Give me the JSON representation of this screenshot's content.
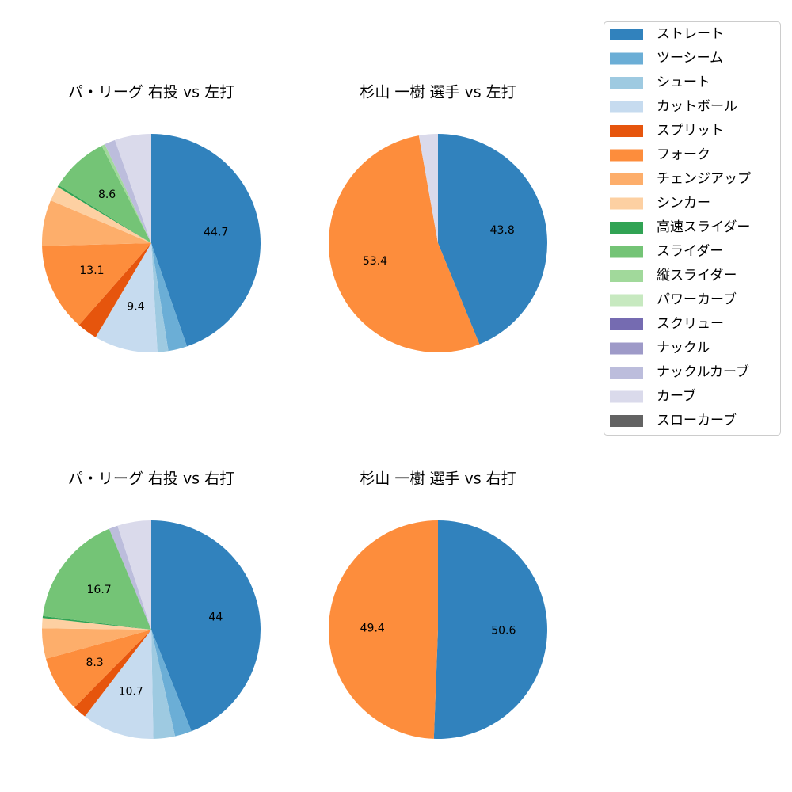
{
  "legend": {
    "categories": [
      "ストレート",
      "ツーシーム",
      "シュート",
      "カットボール",
      "スプリット",
      "フォーク",
      "チェンジアップ",
      "シンカー",
      "高速スライダー",
      "スライダー",
      "縦スライダー",
      "パワーカーブ",
      "スクリュー",
      "ナックル",
      "ナックルカーブ",
      "カーブ",
      "スローカーブ"
    ],
    "colors": [
      "#3182bd",
      "#6baed6",
      "#9ecae1",
      "#c6dbef",
      "#e6550d",
      "#fd8d3c",
      "#fdae6b",
      "#fdd0a2",
      "#31a354",
      "#74c476",
      "#a1d99b",
      "#c7e9c0",
      "#756bb1",
      "#9e9ac8",
      "#bcbddc",
      "#dadaeb",
      "#636363"
    ]
  },
  "chart_data": [
    {
      "type": "pie",
      "title": "パ・リーグ 右投 vs 左打",
      "values": [
        44.7,
        2.8,
        1.6,
        9.4,
        3.0,
        13.1,
        6.8,
        2.2,
        0.3,
        8.6,
        0.5,
        0,
        0,
        0,
        1.6,
        5.4,
        0
      ]
    },
    {
      "type": "pie",
      "title": "杉山 一樹 選手 vs 左打",
      "values": [
        43.8,
        0,
        0,
        0,
        0,
        53.4,
        0,
        0,
        0,
        0,
        0,
        0,
        0,
        0,
        0,
        2.8,
        0
      ]
    },
    {
      "type": "pie",
      "title": "パ・リーグ 右投 vs 右打",
      "values": [
        44.0,
        2.5,
        3.2,
        10.7,
        2.0,
        8.3,
        4.5,
        1.5,
        0.3,
        16.7,
        0,
        0,
        0,
        0,
        1.3,
        5.0,
        0
      ]
    },
    {
      "type": "pie",
      "title": "杉山 一樹 選手 vs 右打",
      "values": [
        50.6,
        0,
        0,
        0,
        0,
        49.4,
        0,
        0,
        0,
        0,
        0,
        0,
        0,
        0,
        0,
        0,
        0
      ]
    }
  ]
}
